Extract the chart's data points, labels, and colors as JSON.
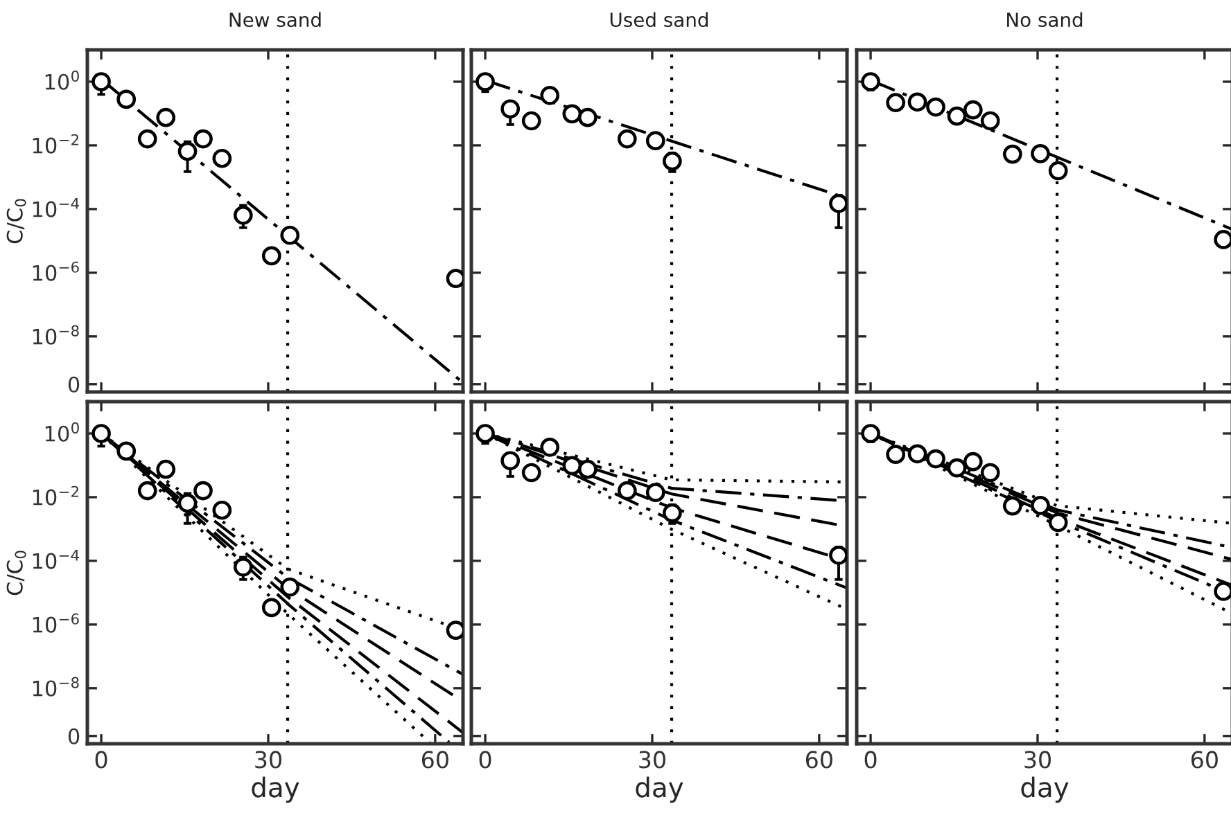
{
  "chart_data": [
    {
      "type": "scatter",
      "title": "New sand",
      "ylabel": "C/C$_{0}$",
      "log": "y",
      "tick_labels": "y",
      "xlim": [
        -2.5,
        65
      ],
      "ylim": [
        1.8e-10,
        10
      ],
      "xticks": [
        {
          "value": 0,
          "label": null
        },
        {
          "value": 30,
          "label": null
        },
        {
          "value": 60,
          "label": null
        }
      ],
      "yticks": [
        {
          "value": 1,
          "label": "10$^{0}$"
        },
        {
          "value": 0.01,
          "label": "10$^{−2}$"
        },
        {
          "value": 0.0001,
          "label": "10$^{−4}$"
        },
        {
          "value": 1e-06,
          "label": "10$^{−6}$"
        },
        {
          "value": 1e-08,
          "label": "10$^{−8}$"
        },
        {
          "value": 3.16e-10,
          "label": "0"
        }
      ],
      "ref_lines": [
        {
          "axis": "x",
          "value": 33.5,
          "color": "#000000",
          "line_style": "dotted"
        }
      ],
      "series": [
        {
          "type": "scatter",
          "color": "#000000",
          "marker": "circle",
          "x": [
            0,
            4.5,
            8.3,
            11.6,
            15.5,
            18.3,
            21.7,
            25.5,
            30.6,
            33.9,
            63.7
          ],
          "values": [
            1,
            0.28,
            0.016,
            0.075,
            0.0065,
            0.016,
            0.0039,
            6.4e-05,
            3.4e-06,
            1.5e-05,
            6.6e-07
          ],
          "errors": [
            [
              0.4,
              1.2
            ],
            null,
            null,
            null,
            [
              0.0015,
              0.013
            ],
            null,
            null,
            [
              2.6e-05,
              0.00013
            ],
            null,
            null,
            null
          ]
        },
        {
          "type": "line",
          "color": "#000000",
          "line_style": "dashdot",
          "x": [
            0,
            65
          ],
          "values": [
            1.2,
            3.5e-10
          ]
        }
      ]
    },
    {
      "type": "scatter",
      "title": "Used sand",
      "log": "y",
      "tick_labels": false,
      "xlim": [
        -2.5,
        65
      ],
      "ylim": [
        1.8e-10,
        10
      ],
      "xticks": [
        {
          "value": 0,
          "label": null
        },
        {
          "value": 30,
          "label": null
        },
        {
          "value": 60,
          "label": null
        }
      ],
      "yticks": [
        {
          "value": 1,
          "label": null
        },
        {
          "value": 0.01,
          "label": null
        },
        {
          "value": 0.0001,
          "label": null
        },
        {
          "value": 1e-06,
          "label": null
        },
        {
          "value": 1e-08,
          "label": null
        },
        {
          "value": 3.16e-10,
          "label": null
        }
      ],
      "ref_lines": [
        {
          "axis": "x",
          "value": 33.5,
          "color": "#000000",
          "line_style": "dotted"
        }
      ],
      "series": [
        {
          "type": "scatter",
          "color": "#000000",
          "marker": "circle",
          "x": [
            0,
            4.5,
            8.3,
            11.6,
            15.6,
            18.4,
            25.5,
            30.6,
            33.6,
            63.5
          ],
          "values": [
            1,
            0.14,
            0.059,
            0.37,
            0.098,
            0.075,
            0.016,
            0.014,
            0.0032,
            0.00015
          ],
          "errors": [
            [
              0.49,
              1
            ],
            [
              0.045,
              0.14
            ],
            null,
            null,
            null,
            null,
            null,
            null,
            [
              0.0015,
              0.0057
            ],
            [
              2.6e-05,
              0.00027
            ]
          ]
        },
        {
          "type": "line",
          "color": "#000000",
          "line_style": "dashdot",
          "x": [
            0,
            64
          ],
          "values": [
            1.1,
            0.00025
          ]
        }
      ]
    },
    {
      "type": "scatter",
      "title": "No sand",
      "log": "y",
      "tick_labels": false,
      "xlim": [
        -2.5,
        65
      ],
      "ylim": [
        1.8e-10,
        10
      ],
      "xticks": [
        {
          "value": 0,
          "label": null
        },
        {
          "value": 30,
          "label": null
        },
        {
          "value": 60,
          "label": null
        }
      ],
      "yticks": [
        {
          "value": 1,
          "label": null
        },
        {
          "value": 0.01,
          "label": null
        },
        {
          "value": 0.0001,
          "label": null
        },
        {
          "value": 1e-06,
          "label": null
        },
        {
          "value": 1e-08,
          "label": null
        },
        {
          "value": 3.16e-10,
          "label": null
        }
      ],
      "ref_lines": [
        {
          "axis": "x",
          "value": 33.5,
          "color": "#000000",
          "line_style": "dotted"
        }
      ],
      "series": [
        {
          "type": "scatter",
          "color": "#000000",
          "marker": "circle",
          "x": [
            0,
            4.5,
            8.4,
            11.7,
            15.5,
            18.4,
            21.5,
            25.5,
            30.5,
            33.7,
            63.4
          ],
          "values": [
            1,
            0.22,
            0.23,
            0.16,
            0.083,
            0.13,
            0.059,
            0.0053,
            0.0055,
            0.0016,
            1.1e-05
          ],
          "errors": [
            [
              0.55,
              1
            ],
            null,
            null,
            null,
            null,
            null,
            null,
            null,
            null,
            null,
            null
          ]
        },
        {
          "type": "line",
          "color": "#000000",
          "line_style": "dashdot",
          "x": [
            0,
            65
          ],
          "values": [
            1.1,
            2.3e-05
          ]
        }
      ]
    },
    {
      "type": "scatter",
      "xlabel": "day",
      "ylabel": "C/C$_{0}$",
      "log": "y",
      "xlim": [
        -2.5,
        65
      ],
      "ylim": [
        1.8e-10,
        10
      ],
      "xticks": [
        0,
        30,
        60
      ],
      "yticks": [
        {
          "value": 1,
          "label": "10$^{0}$"
        },
        {
          "value": 0.01,
          "label": "10$^{−2}$"
        },
        {
          "value": 0.0001,
          "label": "10$^{−4}$"
        },
        {
          "value": 1e-06,
          "label": "10$^{−6}$"
        },
        {
          "value": 1e-08,
          "label": "10$^{−8}$"
        },
        {
          "value": 3.16e-10,
          "label": "0"
        }
      ],
      "ref_lines": [
        {
          "axis": "x",
          "value": 33.5,
          "color": "#000000",
          "line_style": "dotted"
        }
      ],
      "series": [
        {
          "type": "scatter",
          "color": "#000000",
          "marker": "circle",
          "x": [
            0,
            4.5,
            8.3,
            11.6,
            15.5,
            18.3,
            21.7,
            25.5,
            30.6,
            33.9,
            63.7
          ],
          "values": [
            1,
            0.28,
            0.016,
            0.075,
            0.0065,
            0.016,
            0.0039,
            6.4e-05,
            3.4e-06,
            1.5e-05,
            6.6e-07
          ],
          "errors": [
            [
              0.4,
              1.2
            ],
            null,
            null,
            null,
            [
              0.0015,
              0.013
            ],
            null,
            null,
            [
              2.6e-05,
              0.00013
            ],
            null,
            null,
            null
          ]
        },
        {
          "type": "line",
          "color": "#000000",
          "line_style": "dotted",
          "x": [
            0,
            33.5,
            65
          ],
          "values": [
            1,
            5.6e-05,
            6.5e-07
          ]
        },
        {
          "type": "line",
          "color": "#000000",
          "line_style": "dashdot",
          "x": [
            0,
            33.5,
            65
          ],
          "values": [
            1,
            3e-05,
            2.7e-08
          ]
        },
        {
          "type": "line",
          "color": "#000000",
          "line_style": "dashed",
          "x": [
            0,
            33.5,
            65
          ],
          "values": [
            1,
            1.4e-05,
            3.8e-09
          ]
        },
        {
          "type": "line",
          "color": "#000000",
          "line_style": "dashed",
          "x": [
            0,
            33.5,
            65
          ],
          "values": [
            1,
            7.4e-06,
            4e-10
          ]
        },
        {
          "type": "line",
          "color": "#000000",
          "line_style": "dashdot",
          "x": [
            0,
            33.5,
            62.5
          ],
          "values": [
            1,
            4.5e-06,
            2e-10
          ]
        },
        {
          "type": "line",
          "color": "#000000",
          "line_style": "dotted",
          "x": [
            0,
            33.5,
            59
          ],
          "values": [
            1,
            2.2e-06,
            2e-10
          ]
        }
      ]
    },
    {
      "type": "scatter",
      "xlabel": "day",
      "log": "y",
      "tick_labels": "x",
      "xlim": [
        -2.5,
        65
      ],
      "ylim": [
        1.8e-10,
        10
      ],
      "xticks": [
        0,
        30,
        60
      ],
      "yticks": [
        {
          "value": 1,
          "label": null
        },
        {
          "value": 0.01,
          "label": null
        },
        {
          "value": 0.0001,
          "label": null
        },
        {
          "value": 1e-06,
          "label": null
        },
        {
          "value": 1e-08,
          "label": null
        },
        {
          "value": 3.16e-10,
          "label": null
        }
      ],
      "ref_lines": [
        {
          "axis": "x",
          "value": 33.5,
          "color": "#000000",
          "line_style": "dotted"
        }
      ],
      "series": [
        {
          "type": "scatter",
          "color": "#000000",
          "marker": "circle",
          "x": [
            0,
            4.5,
            8.3,
            11.6,
            15.6,
            18.4,
            25.5,
            30.6,
            33.6,
            63.5
          ],
          "values": [
            1,
            0.14,
            0.059,
            0.37,
            0.098,
            0.075,
            0.016,
            0.014,
            0.0032,
            0.00015
          ],
          "errors": [
            [
              0.49,
              1
            ],
            [
              0.045,
              0.14
            ],
            null,
            null,
            null,
            null,
            null,
            null,
            [
              0.0015,
              0.0057
            ],
            [
              2.6e-05,
              0.00027
            ]
          ]
        },
        {
          "type": "line",
          "color": "#000000",
          "line_style": "dotted",
          "x": [
            0,
            33.5,
            65
          ],
          "values": [
            1,
            0.035,
            0.03
          ]
        },
        {
          "type": "line",
          "color": "#000000",
          "line_style": "dashdot",
          "x": [
            0,
            33.5,
            65
          ],
          "values": [
            1,
            0.019,
            0.0076
          ]
        },
        {
          "type": "line",
          "color": "#000000",
          "line_style": "dashed",
          "x": [
            0,
            33.5,
            65
          ],
          "values": [
            1,
            0.0126,
            0.0012
          ]
        },
        {
          "type": "line",
          "color": "#000000",
          "line_style": "dashed",
          "x": [
            0,
            33.5,
            65
          ],
          "values": [
            1,
            0.0046,
            0.0001
          ]
        },
        {
          "type": "line",
          "color": "#000000",
          "line_style": "dashdot",
          "x": [
            0,
            33.5,
            65
          ],
          "values": [
            1,
            0.0019,
            1.4e-05
          ]
        },
        {
          "type": "line",
          "color": "#000000",
          "line_style": "dotted",
          "x": [
            0,
            33.5,
            65
          ],
          "values": [
            1,
            0.00098,
            3e-06
          ]
        }
      ]
    },
    {
      "type": "scatter",
      "xlabel": "day",
      "log": "y",
      "tick_labels": "x",
      "xlim": [
        -2.5,
        65
      ],
      "ylim": [
        1.8e-10,
        10
      ],
      "xticks": [
        0,
        30,
        60
      ],
      "yticks": [
        {
          "value": 1,
          "label": null
        },
        {
          "value": 0.01,
          "label": null
        },
        {
          "value": 0.0001,
          "label": null
        },
        {
          "value": 1e-06,
          "label": null
        },
        {
          "value": 1e-08,
          "label": null
        },
        {
          "value": 3.16e-10,
          "label": null
        }
      ],
      "ref_lines": [
        {
          "axis": "x",
          "value": 33.5,
          "color": "#000000",
          "line_style": "dotted"
        }
      ],
      "series": [
        {
          "type": "scatter",
          "color": "#000000",
          "marker": "circle",
          "x": [
            0,
            4.5,
            8.4,
            11.7,
            15.5,
            18.4,
            21.5,
            25.5,
            30.5,
            33.7,
            63.4
          ],
          "values": [
            1,
            0.22,
            0.23,
            0.16,
            0.083,
            0.13,
            0.059,
            0.0053,
            0.0055,
            0.0016,
            1.1e-05
          ],
          "errors": [
            [
              0.55,
              1
            ],
            null,
            null,
            null,
            null,
            null,
            null,
            null,
            null,
            null,
            null
          ]
        },
        {
          "type": "line",
          "color": "#000000",
          "line_style": "dotted",
          "x": [
            0,
            33.5,
            65
          ],
          "values": [
            1,
            0.0054,
            0.0015
          ]
        },
        {
          "type": "line",
          "color": "#000000",
          "line_style": "dashdot",
          "x": [
            0,
            33.5,
            65
          ],
          "values": [
            1,
            0.004,
            0.00026
          ]
        },
        {
          "type": "line",
          "color": "#000000",
          "line_style": "dashed",
          "x": [
            0,
            33.5,
            65
          ],
          "values": [
            1,
            0.0032,
            0.00011
          ]
        },
        {
          "type": "line",
          "color": "#000000",
          "line_style": "dashed",
          "x": [
            0,
            33.5,
            65
          ],
          "values": [
            1,
            0.0022,
            1.7e-05
          ]
        },
        {
          "type": "line",
          "color": "#000000",
          "line_style": "dashdot",
          "x": [
            0,
            33.5,
            65
          ],
          "values": [
            1,
            0.0018,
            8.7e-06
          ]
        },
        {
          "type": "line",
          "color": "#000000",
          "line_style": "dotted",
          "x": [
            0,
            33.5,
            65
          ],
          "values": [
            1,
            0.0013,
            2.2e-06
          ]
        }
      ]
    }
  ]
}
